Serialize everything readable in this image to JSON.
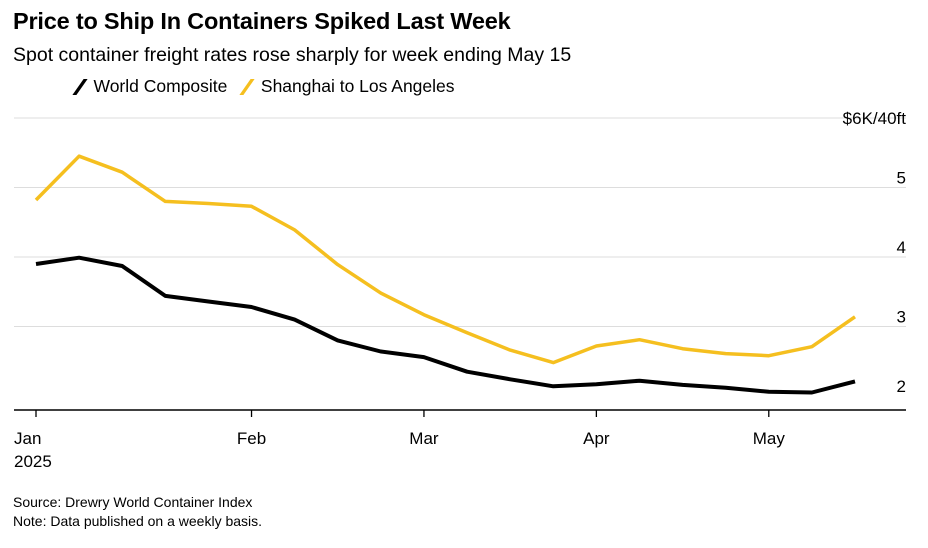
{
  "header": {
    "title": "Price to Ship In Containers Spiked Last Week",
    "subtitle": "Spot container freight rates rose sharply for week ending May 15"
  },
  "footer": {
    "source": "Source: Drewry World Container Index",
    "note": "Note: Data published on a weekly basis."
  },
  "colors": {
    "world": "#000000",
    "shanghai": "#f5bf1f",
    "grid": "#dddddd",
    "axis": "#000000"
  },
  "chart_data": {
    "type": "line",
    "title": "Price to Ship In Containers Spiked Last Week",
    "subtitle": "Spot container freight rates rose sharply for week ending May 15",
    "ylabel": "$6K/40ft",
    "y_unit_label": "$6K/40ft",
    "ylim": [
      1.8,
      6.0
    ],
    "y_ticks": [
      2,
      3,
      4,
      5
    ],
    "grid": true,
    "legend_position": "top-left",
    "x_tick_labels": [
      "Jan\n2025",
      "Feb",
      "Mar",
      "Apr",
      "May"
    ],
    "x_tick_weeks": [
      0,
      5,
      9,
      13,
      17
    ],
    "x_weeks": [
      0,
      1,
      2,
      3,
      4,
      5,
      6,
      7,
      8,
      9,
      10,
      11,
      12,
      13,
      14,
      15,
      16,
      17,
      18,
      19
    ],
    "x_dates": [
      "2025-01-02",
      "2025-01-09",
      "2025-01-16",
      "2025-01-23",
      "2025-01-30",
      "2025-02-06",
      "2025-02-13",
      "2025-02-20",
      "2025-02-27",
      "2025-03-06",
      "2025-03-13",
      "2025-03-20",
      "2025-03-27",
      "2025-04-03",
      "2025-04-10",
      "2025-04-17",
      "2025-04-24",
      "2025-05-01",
      "2025-05-08",
      "2025-05-15"
    ],
    "series": [
      {
        "name": "World Composite",
        "color_key": "world",
        "values": [
          3.9,
          3.99,
          3.87,
          3.44,
          3.36,
          3.28,
          3.1,
          2.8,
          2.64,
          2.56,
          2.35,
          2.24,
          2.14,
          2.17,
          2.22,
          2.16,
          2.12,
          2.06,
          2.05,
          2.21
        ]
      },
      {
        "name": "Shanghai to Los Angeles",
        "color_key": "shanghai",
        "values": [
          4.82,
          5.45,
          5.22,
          4.8,
          4.77,
          4.73,
          4.39,
          3.89,
          3.48,
          3.17,
          2.91,
          2.66,
          2.48,
          2.72,
          2.81,
          2.68,
          2.61,
          2.58,
          2.71,
          3.14
        ]
      }
    ]
  }
}
